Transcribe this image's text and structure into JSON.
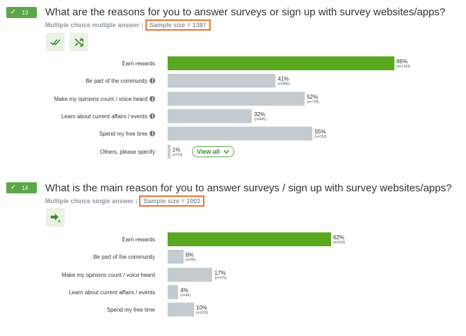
{
  "colors": {
    "accent": "#5aa84a",
    "bar_highlight": "#5aa820",
    "bar_default": "#c5ccd1",
    "highlight_box": "#e8752e"
  },
  "questions": [
    {
      "number": "13",
      "title": "What are the reasons for you to answer surveys or sign up with survey websites/apps?",
      "type_label": "Multiple choice multiple answer",
      "separator": "|",
      "sample_size": "Sample size = 1387",
      "icons": [
        "double-check-icon",
        "shuffle-icon"
      ],
      "view_all_label": "View all",
      "rows": [
        {
          "label": "Earn rewards",
          "pct": "86%",
          "n": "(n=1193)",
          "value": 86,
          "info": false,
          "highlight": true
        },
        {
          "label": "Be part of the community",
          "pct": "41%",
          "n": "(n=566)",
          "value": 41,
          "info": true,
          "highlight": false
        },
        {
          "label": "Make my opinions count / voice heard",
          "pct": "52%",
          "n": "(n=728)",
          "value": 52,
          "info": true,
          "highlight": false
        },
        {
          "label": "Learn about current affairs / events",
          "pct": "32%",
          "n": "(n=445)",
          "value": 32,
          "info": true,
          "highlight": false
        },
        {
          "label": "Spend my free time",
          "pct": "55%",
          "n": "(n=763)",
          "value": 55,
          "info": true,
          "highlight": false
        },
        {
          "label": "Others, please specify",
          "pct": "1%",
          "n": "(n=10)",
          "value": 1,
          "info": false,
          "highlight": false
        }
      ]
    },
    {
      "number": "14",
      "title": "What is the main reason for you to answer surveys / sign up with survey websites/apps?",
      "type_label": "Multiple choice single answer",
      "separator": "|",
      "sample_size": "Sample size = 1002",
      "icons": [
        "arrow-right-icon"
      ],
      "rows": [
        {
          "label": "Earn rewards",
          "pct": "62%",
          "n": "(n=618)",
          "value": 62,
          "info": false,
          "highlight": true
        },
        {
          "label": "Be part of the community",
          "pct": "6%",
          "n": "(n=65)",
          "value": 6,
          "info": false,
          "highlight": false
        },
        {
          "label": "Make my opinions count / voice heard",
          "pct": "17%",
          "n": "(n=175)",
          "value": 17,
          "info": false,
          "highlight": false
        },
        {
          "label": "Learn about current affairs / events",
          "pct": "4%",
          "n": "(n=44)",
          "value": 4,
          "info": false,
          "highlight": false
        },
        {
          "label": "Spend my free time",
          "pct": "10%",
          "n": "(n=100)",
          "value": 10,
          "info": false,
          "highlight": false
        }
      ]
    }
  ]
}
